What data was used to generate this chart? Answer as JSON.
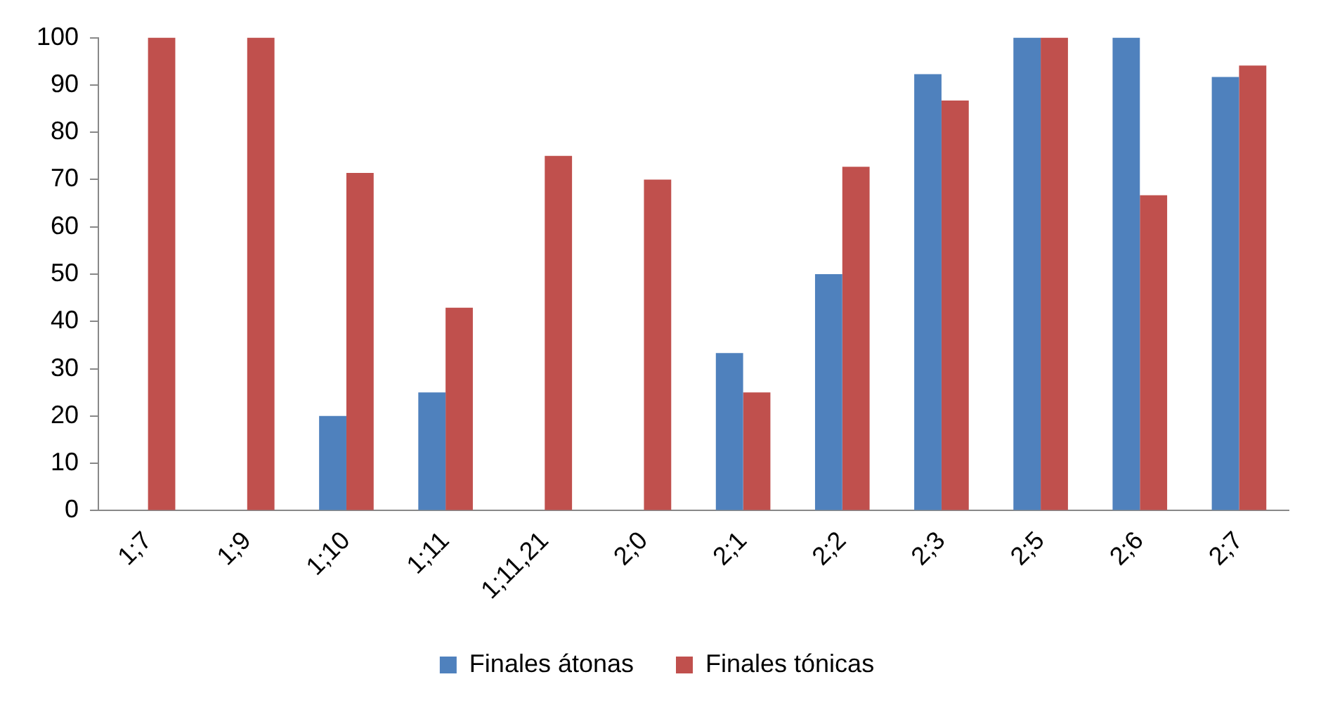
{
  "chart_data": {
    "type": "bar",
    "categories": [
      "1;7",
      "1;9",
      "1;10",
      "1;11",
      "1;11,21",
      "2;0",
      "2;1",
      "2;2",
      "2;3",
      "2;5",
      "2;6",
      "2;7"
    ],
    "series": [
      {
        "name": "Finales átonas",
        "color": "#4f81bd",
        "values": [
          null,
          null,
          20,
          25,
          null,
          null,
          33.3,
          50,
          92.3,
          100,
          100,
          91.7
        ]
      },
      {
        "name": "Finales tónicas",
        "color": "#c0504d",
        "values": [
          100,
          100,
          71.4,
          42.9,
          75,
          70,
          25,
          72.7,
          86.7,
          100,
          66.7,
          94.1
        ]
      }
    ],
    "ylim": [
      0,
      100
    ],
    "yticks": [
      0,
      10,
      20,
      30,
      40,
      50,
      60,
      70,
      80,
      90,
      100
    ],
    "grid": false,
    "legend": "bottom"
  }
}
